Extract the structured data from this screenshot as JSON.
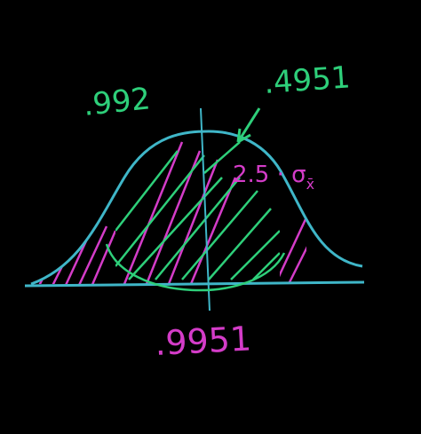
{
  "labels": {
    "left_area": ".992",
    "right_area": ".4951",
    "z_distance": "2.5 · σ",
    "z_subscript": "x̄",
    "total": ".9951"
  }
}
